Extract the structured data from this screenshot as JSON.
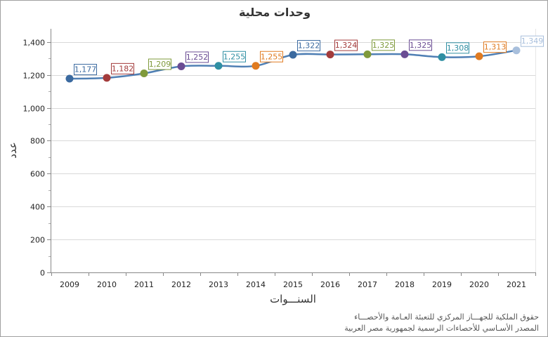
{
  "chart_data": {
    "type": "line",
    "title": "وحدات محلية",
    "xlabel": "السنـــوات",
    "ylabel": "عدد",
    "categories": [
      "2009",
      "2010",
      "2011",
      "2012",
      "2013",
      "2014",
      "2015",
      "2016",
      "2017",
      "2018",
      "2019",
      "2020",
      "2021"
    ],
    "series": [
      {
        "name": "وحدات محلية",
        "values": [
          1177,
          1182,
          1209,
          1252,
          1255,
          1255,
          1322,
          1324,
          1325,
          1325,
          1308,
          1313,
          1349
        ],
        "labels": [
          "1,177",
          "1,182",
          "1,209",
          "1,252",
          "1,255",
          "1,255",
          "1,322",
          "1,324",
          "1,325",
          "1,325",
          "1,308",
          "1,313",
          "1,349"
        ]
      }
    ],
    "ylim": [
      0,
      1480
    ],
    "yticks": [
      0,
      200,
      400,
      600,
      800,
      1000,
      1200,
      1400
    ],
    "ytick_labels": [
      "0",
      "200",
      "400",
      "600",
      "800",
      "1,000",
      "1,200",
      "1,400"
    ],
    "grid": true,
    "legend": "none",
    "line_color": "#4f7fb4",
    "point_colors": [
      "#3b6aa0",
      "#a33b3b",
      "#7f9a3b",
      "#6a4c93",
      "#2f8fa3",
      "#e07b21",
      "#3b6aa0",
      "#a33b3b",
      "#7f9a3b",
      "#6a4c93",
      "#2f8fa3",
      "#e07b21",
      "#a8bfdc"
    ]
  },
  "credits": {
    "line1": "حقوق الملكية للجهـــاز المركزي للتعبئة العـامة والأحصـــاء",
    "line2": "المصدر الأسـاسي للأحصاءات الرسمية لجمهورية مصر العربية"
  }
}
